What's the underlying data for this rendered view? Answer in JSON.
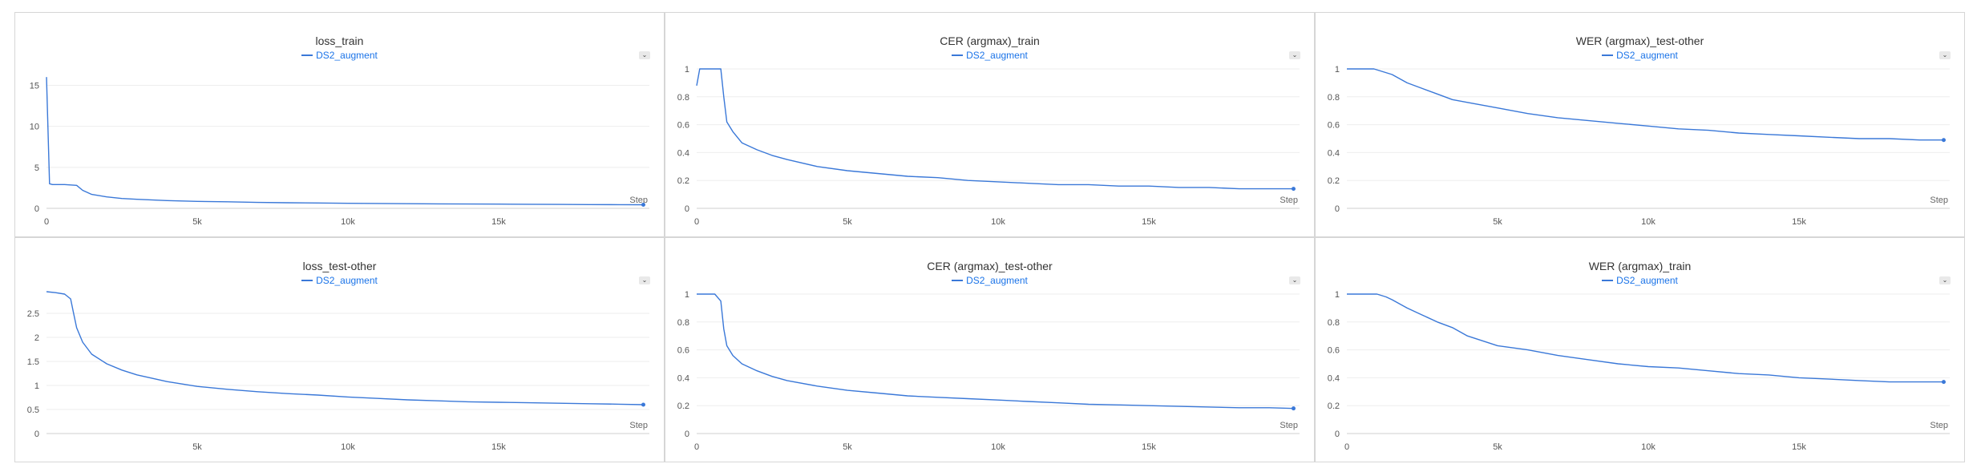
{
  "chart_data": [
    {
      "type": "line",
      "title": "loss_train",
      "legend": "DS2_augment",
      "xlabel": "Step",
      "xlim": [
        0,
        20000
      ],
      "ylim": [
        0,
        17
      ],
      "xticks": [
        0,
        5000,
        10000,
        15000
      ],
      "xtick_labels": [
        "0",
        "5k",
        "10k",
        "15k"
      ],
      "yticks": [
        0,
        5,
        10,
        15
      ],
      "ytick_labels": [
        "0",
        "5",
        "10",
        "15"
      ],
      "series": [
        {
          "name": "DS2_augment",
          "color": "#3a78d8",
          "x": [
            0,
            100,
            200,
            400,
            600,
            800,
            1000,
            1200,
            1500,
            2000,
            2500,
            3000,
            4000,
            5000,
            6000,
            7000,
            8000,
            9000,
            10000,
            11000,
            12000,
            13000,
            14000,
            15000,
            16000,
            17000,
            18000,
            19000,
            19800
          ],
          "y": [
            16,
            3,
            2.9,
            2.9,
            2.9,
            2.85,
            2.8,
            2.2,
            1.7,
            1.4,
            1.2,
            1.1,
            0.95,
            0.85,
            0.8,
            0.72,
            0.68,
            0.65,
            0.62,
            0.6,
            0.57,
            0.55,
            0.53,
            0.52,
            0.5,
            0.48,
            0.46,
            0.45,
            0.44
          ]
        }
      ]
    },
    {
      "type": "line",
      "title": "CER (argmax)_train",
      "legend": "DS2_augment",
      "xlabel": "Step",
      "xlim": [
        0,
        20000
      ],
      "ylim": [
        0,
        1
      ],
      "xticks": [
        0,
        5000,
        10000,
        15000
      ],
      "xtick_labels": [
        "0",
        "5k",
        "10k",
        "15k"
      ],
      "yticks": [
        0,
        0.2,
        0.4,
        0.6,
        0.8,
        1
      ],
      "ytick_labels": [
        "0",
        "0.2",
        "0.4",
        "0.6",
        "0.8",
        "1"
      ],
      "series": [
        {
          "name": "DS2_augment",
          "color": "#3a78d8",
          "x": [
            0,
            100,
            300,
            500,
            800,
            900,
            1000,
            1200,
            1500,
            2000,
            2500,
            3000,
            4000,
            5000,
            6000,
            7000,
            8000,
            9000,
            10000,
            11000,
            12000,
            13000,
            14000,
            15000,
            16000,
            17000,
            18000,
            19000,
            19800
          ],
          "y": [
            0.88,
            1,
            1,
            1,
            1,
            0.8,
            0.62,
            0.55,
            0.47,
            0.42,
            0.38,
            0.35,
            0.3,
            0.27,
            0.25,
            0.23,
            0.22,
            0.2,
            0.19,
            0.18,
            0.17,
            0.17,
            0.16,
            0.16,
            0.15,
            0.15,
            0.14,
            0.14,
            0.14
          ]
        }
      ]
    },
    {
      "type": "line",
      "title": "WER (argmax)_test-other",
      "legend": "DS2_augment",
      "xlabel": "Step",
      "xlim": [
        0,
        20000
      ],
      "ylim": [
        0,
        1
      ],
      "xticks": [
        5000,
        10000,
        15000
      ],
      "xtick_labels": [
        "5k",
        "10k",
        "15k"
      ],
      "yticks": [
        0,
        0.2,
        0.4,
        0.6,
        0.8,
        1
      ],
      "ytick_labels": [
        "0",
        "0.2",
        "0.4",
        "0.6",
        "0.8",
        "1"
      ],
      "series": [
        {
          "name": "DS2_augment",
          "color": "#3a78d8",
          "x": [
            0,
            500,
            900,
            1200,
            1500,
            2000,
            2500,
            3000,
            3500,
            4000,
            5000,
            6000,
            7000,
            8000,
            9000,
            10000,
            11000,
            12000,
            13000,
            14000,
            15000,
            16000,
            17000,
            18000,
            19000,
            19800
          ],
          "y": [
            1,
            1,
            1,
            0.98,
            0.96,
            0.9,
            0.86,
            0.82,
            0.78,
            0.76,
            0.72,
            0.68,
            0.65,
            0.63,
            0.61,
            0.59,
            0.57,
            0.56,
            0.54,
            0.53,
            0.52,
            0.51,
            0.5,
            0.5,
            0.49,
            0.49
          ]
        }
      ]
    },
    {
      "type": "line",
      "title": "loss_test-other",
      "legend": "DS2_augment",
      "xlabel": "Step",
      "xlim": [
        0,
        20000
      ],
      "ylim": [
        0,
        2.9
      ],
      "xticks": [
        5000,
        10000,
        15000
      ],
      "xtick_labels": [
        "5k",
        "10k",
        "15k"
      ],
      "yticks": [
        0,
        0.5,
        1,
        1.5,
        2,
        2.5
      ],
      "ytick_labels": [
        "0",
        "0.5",
        "1",
        "1.5",
        "2",
        "2.5"
      ],
      "series": [
        {
          "name": "DS2_augment",
          "color": "#3a78d8",
          "x": [
            0,
            300,
            600,
            800,
            900,
            1000,
            1200,
            1500,
            2000,
            2500,
            3000,
            4000,
            5000,
            6000,
            7000,
            8000,
            9000,
            10000,
            11000,
            12000,
            13000,
            14000,
            15000,
            16000,
            17000,
            18000,
            19000,
            19800
          ],
          "y": [
            2.95,
            2.93,
            2.9,
            2.8,
            2.5,
            2.2,
            1.9,
            1.65,
            1.45,
            1.32,
            1.22,
            1.08,
            0.98,
            0.92,
            0.87,
            0.83,
            0.8,
            0.76,
            0.73,
            0.7,
            0.68,
            0.66,
            0.65,
            0.64,
            0.63,
            0.62,
            0.61,
            0.6
          ]
        }
      ]
    },
    {
      "type": "line",
      "title": "CER (argmax)_test-other",
      "legend": "DS2_augment",
      "xlabel": "Step",
      "xlim": [
        0,
        20000
      ],
      "ylim": [
        0,
        1
      ],
      "xticks": [
        0,
        5000,
        10000,
        15000
      ],
      "xtick_labels": [
        "0",
        "5k",
        "10k",
        "15k"
      ],
      "yticks": [
        0,
        0.2,
        0.4,
        0.6,
        0.8,
        1
      ],
      "ytick_labels": [
        "0",
        "0.2",
        "0.4",
        "0.6",
        "0.8",
        "1"
      ],
      "series": [
        {
          "name": "DS2_augment",
          "color": "#3a78d8",
          "x": [
            0,
            300,
            600,
            800,
            900,
            1000,
            1200,
            1500,
            2000,
            2500,
            3000,
            4000,
            5000,
            6000,
            7000,
            8000,
            9000,
            10000,
            11000,
            12000,
            13000,
            14000,
            15000,
            16000,
            17000,
            18000,
            19000,
            19800
          ],
          "y": [
            1,
            1,
            1,
            0.95,
            0.75,
            0.63,
            0.56,
            0.5,
            0.45,
            0.41,
            0.38,
            0.34,
            0.31,
            0.29,
            0.27,
            0.26,
            0.25,
            0.24,
            0.23,
            0.22,
            0.21,
            0.205,
            0.2,
            0.195,
            0.19,
            0.185,
            0.185,
            0.18
          ]
        }
      ]
    },
    {
      "type": "line",
      "title": "WER (argmax)_train",
      "legend": "DS2_augment",
      "xlabel": "Step",
      "xlim": [
        0,
        20000
      ],
      "ylim": [
        0,
        1
      ],
      "xticks": [
        0,
        5000,
        10000,
        15000
      ],
      "xtick_labels": [
        "0",
        "5k",
        "10k",
        "15k"
      ],
      "yticks": [
        0,
        0.2,
        0.4,
        0.6,
        0.8,
        1
      ],
      "ytick_labels": [
        "0",
        "0.2",
        "0.4",
        "0.6",
        "0.8",
        "1"
      ],
      "series": [
        {
          "name": "DS2_augment",
          "color": "#3a78d8",
          "x": [
            0,
            500,
            1000,
            1300,
            1500,
            2000,
            2500,
            3000,
            3500,
            4000,
            5000,
            6000,
            7000,
            8000,
            9000,
            10000,
            11000,
            12000,
            13000,
            14000,
            15000,
            16000,
            17000,
            18000,
            19000,
            19800
          ],
          "y": [
            1,
            1,
            1,
            0.98,
            0.96,
            0.9,
            0.85,
            0.8,
            0.76,
            0.7,
            0.63,
            0.6,
            0.56,
            0.53,
            0.5,
            0.48,
            0.47,
            0.45,
            0.43,
            0.42,
            0.4,
            0.39,
            0.38,
            0.37,
            0.37,
            0.37
          ]
        }
      ]
    }
  ]
}
